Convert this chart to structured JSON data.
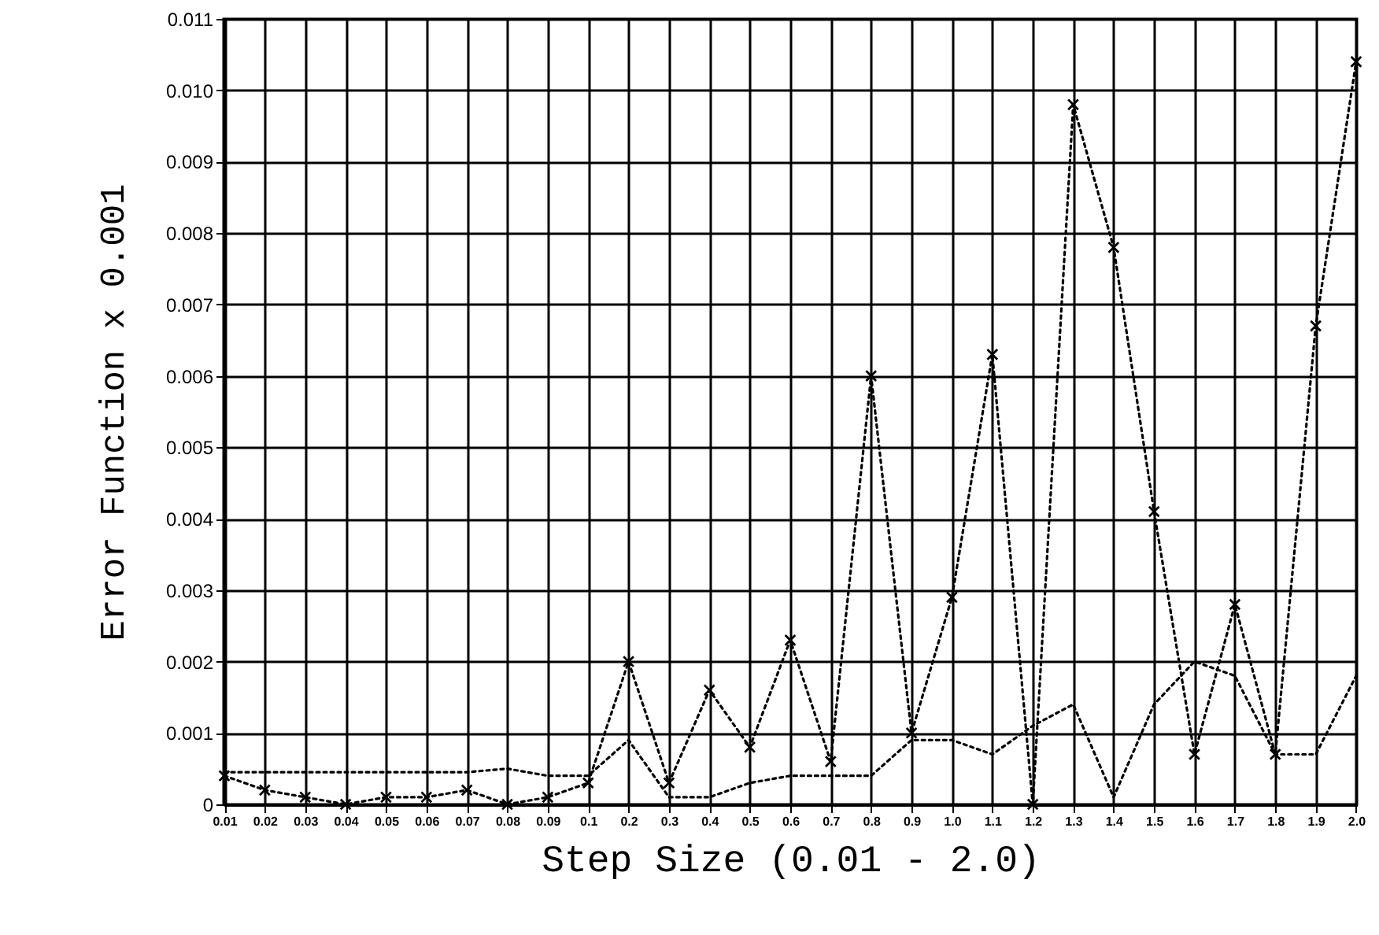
{
  "chart_data": {
    "type": "line",
    "xlabel": "Step Size (0.01 - 2.0)",
    "ylabel": "Error Function x 0.001",
    "categories": [
      "0.01",
      "0.02",
      "0.03",
      "0.04",
      "0.05",
      "0.06",
      "0.07",
      "0.08",
      "0.09",
      "0.1",
      "0.2",
      "0.3",
      "0.4",
      "0.5",
      "0.6",
      "0.7",
      "0.8",
      "0.9",
      "1.0",
      "1.1",
      "1.2",
      "1.3",
      "1.4",
      "1.5",
      "1.6",
      "1.7",
      "1.8",
      "1.9",
      "2.0"
    ],
    "series": [
      {
        "color": "#000000",
        "marker": "cross",
        "values": [
          0.0004,
          0.0002,
          0.0001,
          0.0,
          0.0001,
          0.0001,
          0.0002,
          0.0,
          0.0001,
          0.0003,
          0.002,
          0.0003,
          0.0016,
          0.0008,
          0.0023,
          0.0006,
          0.006,
          0.001,
          0.0029,
          0.0063,
          0.0,
          0.0098,
          0.0078,
          0.0041,
          0.0007,
          0.0028,
          0.0007,
          0.0067,
          0.0104
        ]
      },
      {
        "color": "#000000",
        "marker": "none",
        "values": [
          0.00045,
          0.00045,
          0.00045,
          0.00045,
          0.00045,
          0.00045,
          0.00045,
          0.0005,
          0.0004,
          0.0004,
          0.0009,
          0.0001,
          0.0001,
          0.0003,
          0.0004,
          0.0004,
          0.0004,
          0.0009,
          0.0009,
          0.0007,
          0.0011,
          0.0014,
          0.0001,
          0.0014,
          0.002,
          0.0018,
          0.0007,
          0.0007,
          0.0018
        ]
      }
    ],
    "ylim": [
      0,
      0.011
    ],
    "yticks": [
      0,
      {
        "value": 0.001,
        "label": "0.001"
      },
      {
        "value": 0.002,
        "label": "0.002"
      },
      {
        "value": 0.003,
        "label": "0.003"
      },
      {
        "value": 0.004,
        "label": "0.004"
      },
      {
        "value": 0.005,
        "label": "0.005"
      },
      {
        "value": 0.006,
        "label": "0.006"
      },
      {
        "value": 0.007,
        "label": "0.007"
      },
      {
        "value": 0.008,
        "label": "0.008"
      },
      {
        "value": 0.009,
        "label": "0.009"
      },
      {
        "value": 0.01,
        "label": "0.010"
      },
      {
        "value": 0.011,
        "label": "0.011"
      }
    ],
    "grid": true,
    "line_style": "dotted"
  }
}
